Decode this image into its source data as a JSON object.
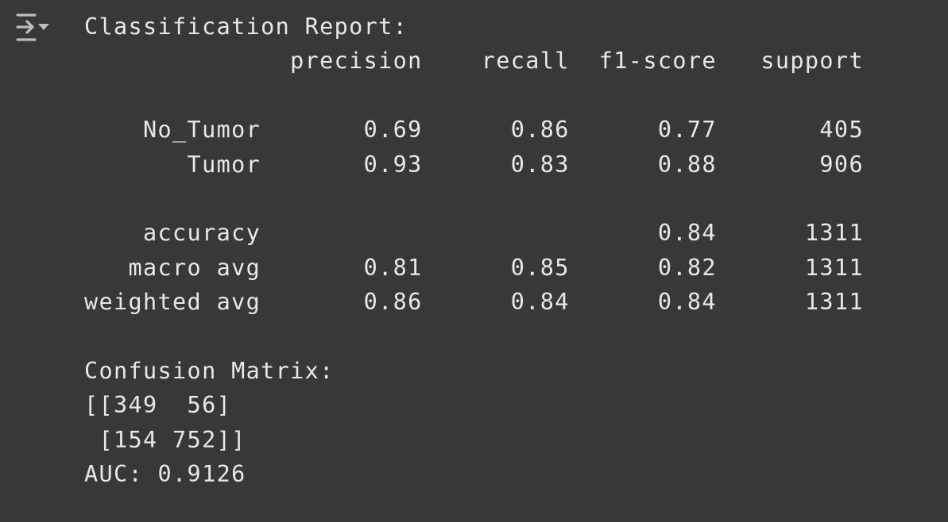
{
  "output_toggle": {
    "icon": "collapse-output-icon"
  },
  "output": {
    "lines": [
      "Classification Report:",
      "              precision    recall  f1-score   support",
      "",
      "    No_Tumor       0.69      0.86      0.77       405",
      "       Tumor       0.93      0.83      0.88       906",
      "",
      "    accuracy                           0.84      1311",
      "   macro avg       0.81      0.85      0.82      1311",
      "weighted avg       0.86      0.84      0.84      1311",
      "",
      "Confusion Matrix:",
      "[[349  56]",
      " [154 752]]",
      "AUC: 0.9126"
    ]
  }
}
